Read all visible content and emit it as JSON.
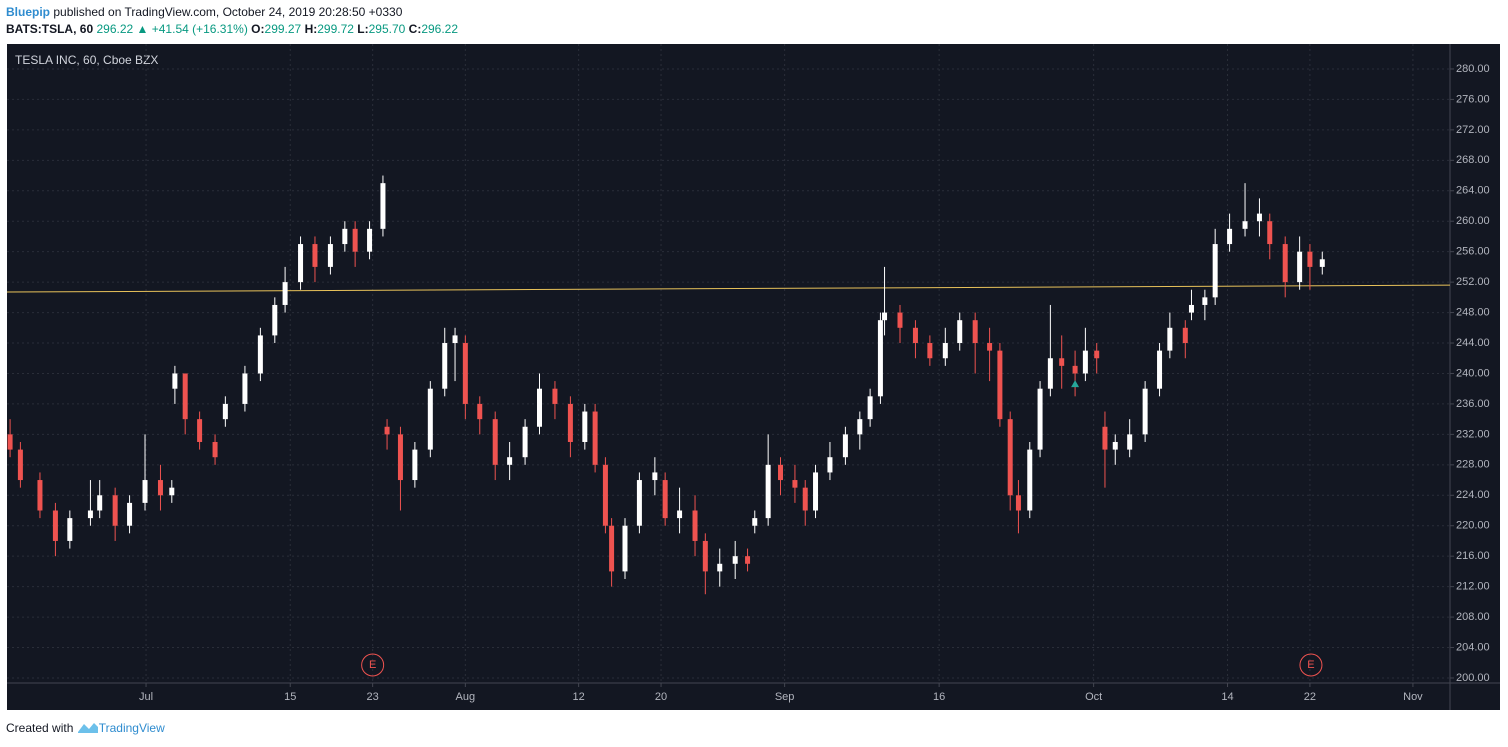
{
  "header": {
    "author": "Bluepip",
    "published": "published on TradingView.com, October 24, 2019 20:28:50 +0330",
    "symbol": "BATS:TSLA, 60",
    "last": "296.22",
    "change": "+41.54 (+16.31%)",
    "o_label": "O:",
    "o": "299.27",
    "h_label": "H:",
    "h": "299.72",
    "l_label": "L:",
    "l": "295.70",
    "c_label": "C:",
    "c": "296.22"
  },
  "footer": {
    "created": "Created with",
    "brand": "TradingView"
  },
  "chart_data": {
    "type": "candlestick",
    "title": "TESLA INC, 60, Cboe BZX",
    "up_color": "#ffffff",
    "down_color": "#ef5350",
    "grid": true,
    "xlim": [
      168.5,
      308.6
    ],
    "ylim": [
      199.34,
      283.28
    ],
    "xticks": [
      {
        "value": 182,
        "label": "Jul"
      },
      {
        "value": 196,
        "label": "15"
      },
      {
        "value": 204,
        "label": "23"
      },
      {
        "value": 213,
        "label": "Aug"
      },
      {
        "value": 224,
        "label": "12"
      },
      {
        "value": 232,
        "label": "20"
      },
      {
        "value": 244,
        "label": "Sep"
      },
      {
        "value": 259,
        "label": "16"
      },
      {
        "value": 274,
        "label": "Oct"
      },
      {
        "value": 287,
        "label": "14"
      },
      {
        "value": 295,
        "label": "22"
      },
      {
        "value": 305,
        "label": "Nov"
      }
    ],
    "yticks": [
      {
        "value": 200,
        "label": "200.00"
      },
      {
        "value": 204,
        "label": "204.00"
      },
      {
        "value": 208,
        "label": "208.00"
      },
      {
        "value": 212,
        "label": "212.00"
      },
      {
        "value": 216,
        "label": "216.00"
      },
      {
        "value": 220,
        "label": "220.00"
      },
      {
        "value": 224,
        "label": "224.00"
      },
      {
        "value": 228,
        "label": "228.00"
      },
      {
        "value": 232,
        "label": "232.00"
      },
      {
        "value": 236,
        "label": "236.00"
      },
      {
        "value": 240,
        "label": "240.00"
      },
      {
        "value": 244,
        "label": "244.00"
      },
      {
        "value": 248,
        "label": "248.00"
      },
      {
        "value": 252,
        "label": "252.00"
      },
      {
        "value": 256,
        "label": "256.00"
      },
      {
        "value": 260,
        "label": "260.00"
      },
      {
        "value": 264,
        "label": "264.00"
      },
      {
        "value": 268,
        "label": "268.00"
      },
      {
        "value": 272,
        "label": "272.00"
      },
      {
        "value": 276,
        "label": "276.00"
      },
      {
        "value": 280,
        "label": "280.00"
      }
    ],
    "candles": [
      [
        168.8,
        232,
        234,
        229,
        230
      ],
      [
        169.8,
        230,
        231,
        225,
        226
      ],
      [
        171.7,
        226,
        227,
        221,
        222
      ],
      [
        173.2,
        222,
        223,
        216,
        218
      ],
      [
        174.6,
        218,
        222,
        217,
        221
      ],
      [
        176.6,
        221,
        226,
        220,
        222
      ],
      [
        177.5,
        222,
        226,
        221,
        224
      ],
      [
        179.0,
        224,
        225,
        218,
        220
      ],
      [
        180.4,
        220,
        224,
        219,
        223
      ],
      [
        181.9,
        223,
        232,
        222,
        226
      ],
      [
        183.4,
        226,
        228,
        222,
        224
      ],
      [
        184.5,
        224,
        226,
        223,
        225
      ],
      [
        184.8,
        238,
        241,
        236,
        240
      ],
      [
        185.8,
        240,
        240,
        232,
        234
      ],
      [
        187.2,
        234,
        235,
        230,
        231
      ],
      [
        188.7,
        231,
        232,
        228,
        229
      ],
      [
        189.7,
        234,
        237,
        233,
        236
      ],
      [
        191.6,
        236,
        241,
        235,
        240
      ],
      [
        193.1,
        240,
        246,
        239,
        245
      ],
      [
        194.5,
        245,
        250,
        244,
        249
      ],
      [
        195.5,
        249,
        254,
        248,
        252
      ],
      [
        197.0,
        252,
        258,
        251,
        257
      ],
      [
        198.4,
        257,
        258,
        252,
        254
      ],
      [
        199.9,
        254,
        258,
        253,
        257
      ],
      [
        201.3,
        257,
        260,
        256,
        259
      ],
      [
        202.3,
        259,
        260,
        254,
        256
      ],
      [
        203.7,
        256,
        260,
        255,
        259
      ],
      [
        205.0,
        259,
        266,
        258,
        265
      ],
      [
        205.4,
        233,
        234,
        230,
        232
      ],
      [
        206.7,
        232,
        233,
        222,
        226
      ],
      [
        208.1,
        226,
        231,
        225,
        230
      ],
      [
        209.6,
        230,
        239,
        229,
        238
      ],
      [
        211.0,
        238,
        246,
        237,
        244
      ],
      [
        212.0,
        244,
        246,
        239,
        245
      ],
      [
        213.0,
        244,
        245,
        234,
        236
      ],
      [
        214.4,
        236,
        237,
        232,
        234
      ],
      [
        215.9,
        234,
        235,
        226,
        228
      ],
      [
        217.3,
        228,
        231,
        226,
        229
      ],
      [
        218.8,
        229,
        234,
        228,
        233
      ],
      [
        220.2,
        233,
        240,
        232,
        238
      ],
      [
        221.7,
        238,
        239,
        234,
        236
      ],
      [
        223.2,
        236,
        237,
        229,
        231
      ],
      [
        224.6,
        231,
        236,
        230,
        235
      ],
      [
        225.6,
        235,
        236,
        227,
        228
      ],
      [
        226.6,
        228,
        229,
        219,
        220
      ],
      [
        227.2,
        220,
        221,
        212,
        214
      ],
      [
        228.5,
        214,
        221,
        213,
        220
      ],
      [
        229.9,
        220,
        227,
        219,
        226
      ],
      [
        231.4,
        226,
        229,
        224,
        227
      ],
      [
        232.4,
        226,
        227,
        220,
        221
      ],
      [
        233.8,
        221,
        225,
        219,
        222
      ],
      [
        235.3,
        222,
        224,
        216,
        218
      ],
      [
        236.3,
        218,
        219,
        211,
        214
      ],
      [
        237.7,
        214,
        217,
        212,
        215
      ],
      [
        239.2,
        215,
        218,
        213,
        216
      ],
      [
        240.4,
        216,
        217,
        214,
        215
      ],
      [
        241.1,
        220,
        222,
        219,
        221
      ],
      [
        242.4,
        221,
        232,
        220,
        228
      ],
      [
        243.6,
        228,
        229,
        224,
        226
      ],
      [
        245.0,
        226,
        228,
        223,
        225
      ],
      [
        246.0,
        225,
        226,
        220,
        222
      ],
      [
        247.0,
        222,
        228,
        221,
        227
      ],
      [
        248.4,
        227,
        231,
        226,
        229
      ],
      [
        249.9,
        229,
        233,
        228,
        232
      ],
      [
        251.3,
        232,
        235,
        230,
        234
      ],
      [
        252.3,
        234,
        238,
        233,
        237
      ],
      [
        253.3,
        237,
        248,
        236,
        247
      ],
      [
        253.7,
        247,
        254,
        245,
        248
      ],
      [
        255.2,
        248,
        249,
        244,
        246
      ],
      [
        256.7,
        246,
        247,
        242,
        244
      ],
      [
        258.1,
        244,
        245,
        241,
        242
      ],
      [
        259.6,
        242,
        246,
        241,
        244
      ],
      [
        261.0,
        244,
        248,
        243,
        247
      ],
      [
        262.5,
        247,
        248,
        240,
        244
      ],
      [
        263.9,
        244,
        246,
        239,
        243
      ],
      [
        264.9,
        243,
        244,
        233,
        234
      ],
      [
        265.9,
        234,
        235,
        222,
        224
      ],
      [
        266.7,
        224,
        226,
        219,
        222
      ],
      [
        267.8,
        222,
        231,
        221,
        230
      ],
      [
        268.8,
        230,
        239,
        229,
        238
      ],
      [
        269.8,
        238,
        249,
        237,
        242
      ],
      [
        270.9,
        242,
        245,
        238,
        241
      ],
      [
        272.2,
        241,
        243,
        237,
        240
      ],
      [
        273.2,
        240,
        246,
        239,
        243
      ],
      [
        274.3,
        243,
        244,
        240,
        242
      ],
      [
        275.1,
        233,
        235,
        225,
        230
      ],
      [
        276.1,
        230,
        232,
        228,
        231
      ],
      [
        277.5,
        230,
        234,
        229,
        232
      ],
      [
        279.0,
        232,
        239,
        231,
        238
      ],
      [
        280.4,
        238,
        244,
        237,
        243
      ],
      [
        281.4,
        243,
        248,
        242,
        246
      ],
      [
        282.9,
        246,
        247,
        242,
        244
      ],
      [
        283.5,
        248,
        251,
        247,
        249
      ],
      [
        284.8,
        249,
        251,
        247,
        250
      ],
      [
        285.8,
        250,
        259,
        249,
        257
      ],
      [
        287.2,
        257,
        261,
        256,
        259
      ],
      [
        288.7,
        259,
        265,
        258,
        260
      ],
      [
        290.1,
        260,
        263,
        258,
        261
      ],
      [
        291.1,
        260,
        261,
        255,
        257
      ],
      [
        292.6,
        257,
        258,
        250,
        252
      ],
      [
        294.0,
        252,
        258,
        251,
        256
      ],
      [
        295.0,
        256,
        257,
        251,
        254
      ],
      [
        296.2,
        254,
        256,
        253,
        255
      ]
    ],
    "trend_line": {
      "x": [
        168.5,
        308.6
      ],
      "y": [
        250.7,
        251.6
      ],
      "color": "#e8c25a"
    },
    "markers": [
      {
        "x": 272.2,
        "y": 238.6,
        "color": "#26a69a"
      }
    ],
    "events": [
      {
        "x": 204.0,
        "label": "E"
      },
      {
        "x": 295.1,
        "label": "E"
      }
    ]
  }
}
